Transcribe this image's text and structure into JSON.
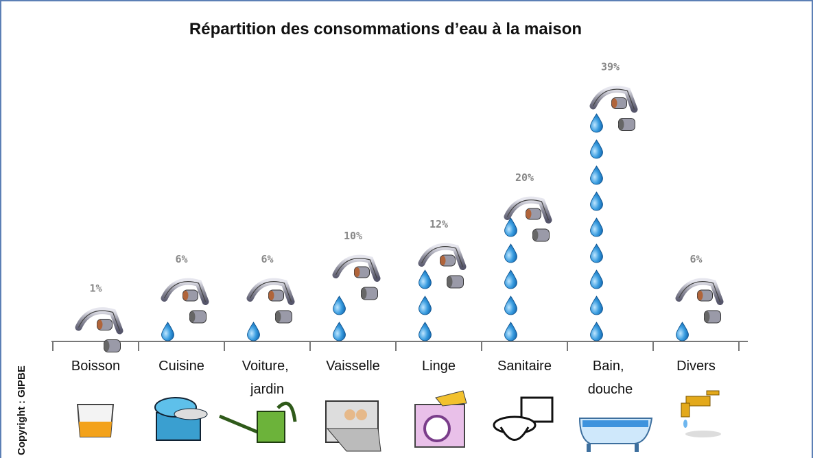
{
  "chart_data": {
    "type": "bar",
    "title": "Répartition des consommations d’eau à la maison",
    "categories": [
      "Boisson",
      "Cuisine",
      "Voiture, jardin",
      "Vaisselle",
      "Linge",
      "Sanitaire",
      "Bain, douche",
      "Divers"
    ],
    "values": [
      1,
      6,
      6,
      10,
      12,
      20,
      39,
      6
    ],
    "value_labels": [
      "1%",
      "6%",
      "6%",
      "10%",
      "12%",
      "20%",
      "39%",
      "6%"
    ],
    "color": "#2e8fd6",
    "annotation": "Copyright : GIPBE"
  }
}
